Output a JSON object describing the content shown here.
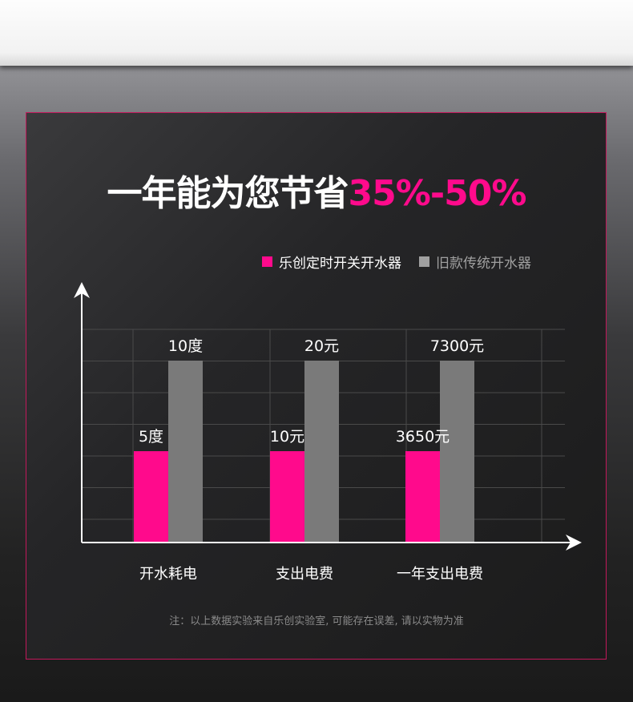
{
  "title": {
    "main": "一年能为您节省",
    "highlight": "35%-50%"
  },
  "colors": {
    "accent": "#ff0a8c",
    "old": "#7a7a7a",
    "legend_old": "#a0a0a0"
  },
  "chart_data": {
    "type": "bar",
    "categories": [
      "开水耗电",
      "支出电费",
      "一年支出电费"
    ],
    "series": [
      {
        "name": "乐创定时开关开水器",
        "values": [
          5,
          10,
          3650
        ],
        "labels": [
          "5度",
          "10元",
          "3650元"
        ],
        "color": "#ff0a8c"
      },
      {
        "name": "旧款传统开水器",
        "values": [
          10,
          20,
          7300
        ],
        "labels": [
          "10度",
          "20元",
          "7300元"
        ],
        "color": "#7a7a7a"
      }
    ],
    "grid": true,
    "legend": "top-right",
    "xlabel": "",
    "ylabel": ""
  },
  "note": "注：以上数据实验来自乐创实验室, 可能存在误差, 请以实物为准"
}
